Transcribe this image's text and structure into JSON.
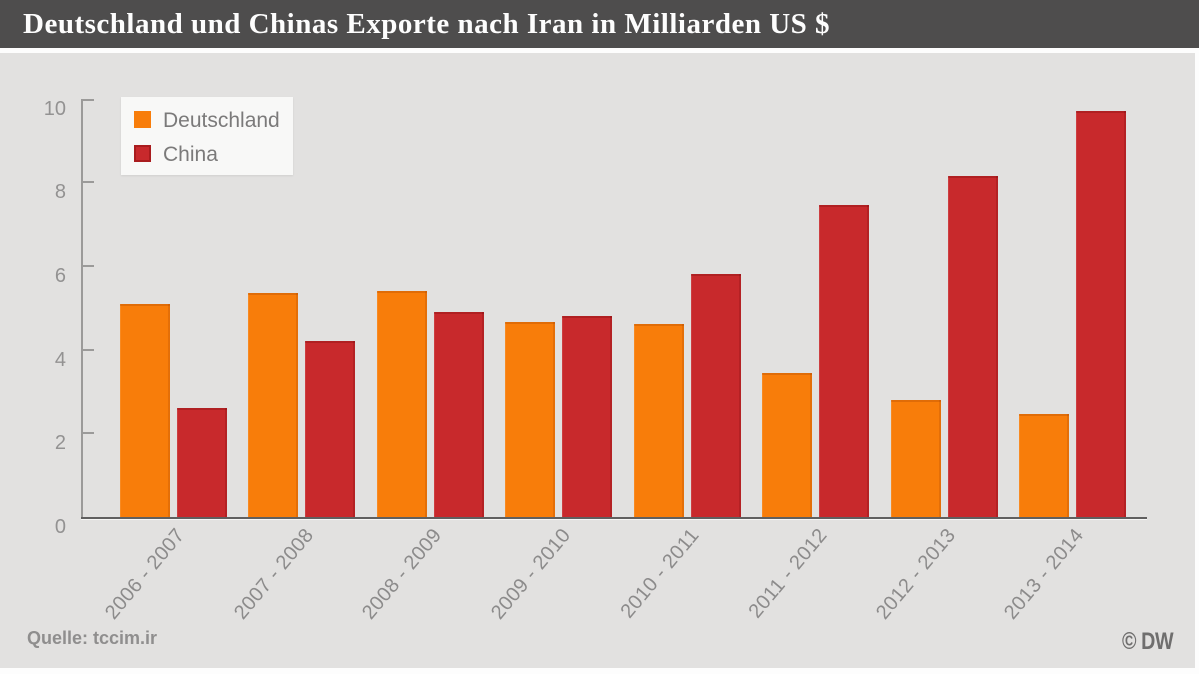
{
  "title_bar": {
    "title": "Deutschland und Chinas Exporte nach Iran in Milliarden US $"
  },
  "legend": {
    "items": [
      {
        "label": "Deutschland",
        "color": "#f87d0a"
      },
      {
        "label": "China",
        "color": "#c8292c"
      }
    ]
  },
  "footer": {
    "source": "Quelle: tccim.ir",
    "credit": "© DW"
  },
  "colors": {
    "title_bar_background": "#4e4d4d",
    "chart_background": "#e2e1e0",
    "deutschland_bar": "#f87d0a",
    "china_bar": "#c8292c",
    "axis": "#9b9a99",
    "text_gray": "#8c8b8b"
  },
  "chart_data": {
    "type": "bar",
    "title": "Deutschland und Chinas Exporte nach Iran in Milliarden US $",
    "categories": [
      "2006 - 2007",
      "2007 - 2008",
      "2008 - 2009",
      "2009 - 2010",
      "2010 - 2011",
      "2011 - 2012",
      "2012 - 2013",
      "2013 - 2014"
    ],
    "series": [
      {
        "name": "Deutschland",
        "color": "#f87d0a",
        "values": [
          5.1,
          5.35,
          5.4,
          4.65,
          4.6,
          3.45,
          2.8,
          2.45
        ]
      },
      {
        "name": "China",
        "color": "#c8292c",
        "values": [
          2.6,
          4.2,
          4.9,
          4.8,
          5.8,
          7.45,
          8.15,
          9.7
        ]
      }
    ],
    "xlabel": "",
    "ylabel": "",
    "ylim": [
      0,
      10
    ],
    "yticks": [
      0,
      2,
      4,
      6,
      8,
      10
    ],
    "grid": false,
    "legend_position": "top-left",
    "source": "Quelle: tccim.ir",
    "credit": "© DW"
  }
}
